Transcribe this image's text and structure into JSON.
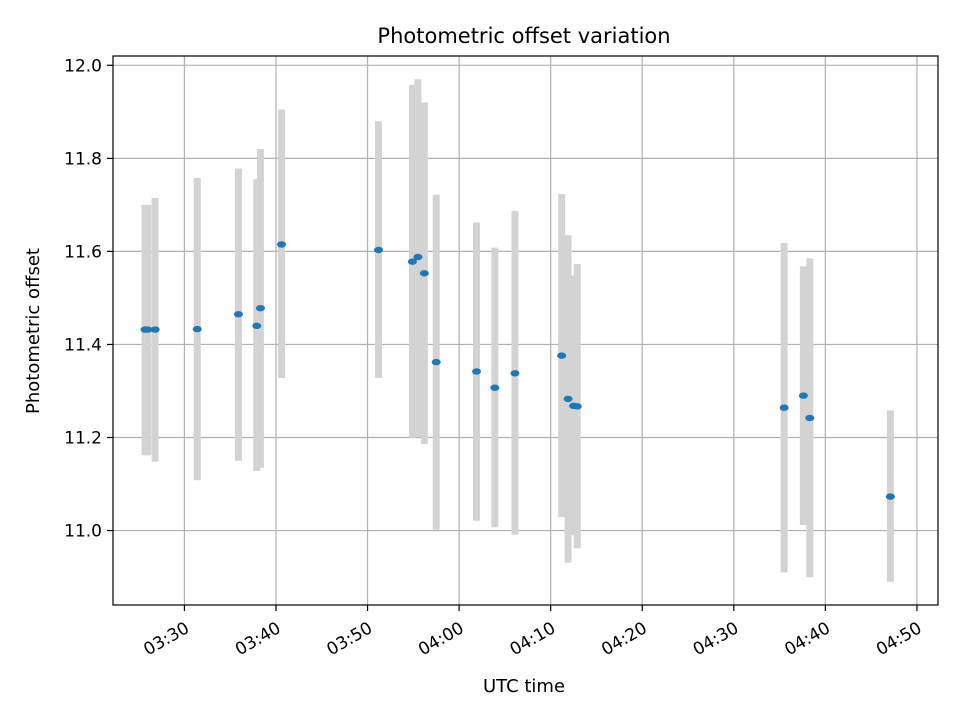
{
  "chart_data": {
    "type": "scatter",
    "title": "Photometric offset variation",
    "xlabel": "UTC time",
    "ylabel": "Photometric offset",
    "grid": true,
    "x_ticks": [
      "03:30",
      "03:40",
      "03:50",
      "04:00",
      "04:10",
      "04:20",
      "04:30",
      "04:40",
      "04:50"
    ],
    "y_ticks": [
      "11.0",
      "11.2",
      "11.4",
      "11.6",
      "11.8",
      "12.0"
    ],
    "xlim": [
      "03:22:12",
      "04:52:18"
    ],
    "ylim": [
      10.84,
      12.02
    ],
    "colors": {
      "points": "#1f77b4",
      "errorbars": "#d3d3d3",
      "grid": "#b0b0b0"
    },
    "points": [
      {
        "x": "03:25:42",
        "y": 11.432,
        "ylow": 11.162,
        "yhigh": 11.7
      },
      {
        "x": "03:26:00",
        "y": 11.432,
        "ylow": 11.162,
        "yhigh": 11.7
      },
      {
        "x": "03:26:48",
        "y": 11.432,
        "ylow": 11.148,
        "yhigh": 11.715
      },
      {
        "x": "03:31:24",
        "y": 11.433,
        "ylow": 11.108,
        "yhigh": 11.758
      },
      {
        "x": "03:35:54",
        "y": 11.465,
        "ylow": 11.15,
        "yhigh": 11.778
      },
      {
        "x": "03:37:54",
        "y": 11.44,
        "ylow": 11.128,
        "yhigh": 11.755
      },
      {
        "x": "03:38:18",
        "y": 11.478,
        "ylow": 11.135,
        "yhigh": 11.82
      },
      {
        "x": "03:40:36",
        "y": 11.615,
        "ylow": 11.328,
        "yhigh": 11.905
      },
      {
        "x": "03:51:12",
        "y": 11.603,
        "ylow": 11.328,
        "yhigh": 11.88
      },
      {
        "x": "03:54:54",
        "y": 11.578,
        "ylow": 11.2,
        "yhigh": 11.958
      },
      {
        "x": "03:55:30",
        "y": 11.588,
        "ylow": 11.202,
        "yhigh": 11.97
      },
      {
        "x": "03:56:12",
        "y": 11.553,
        "ylow": 11.186,
        "yhigh": 11.92
      },
      {
        "x": "03:57:30",
        "y": 11.362,
        "ylow": 11.002,
        "yhigh": 11.722
      },
      {
        "x": "04:01:54",
        "y": 11.342,
        "ylow": 11.021,
        "yhigh": 11.662
      },
      {
        "x": "04:03:54",
        "y": 11.307,
        "ylow": 11.007,
        "yhigh": 11.608
      },
      {
        "x": "04:06:06",
        "y": 11.338,
        "ylow": 10.991,
        "yhigh": 11.687
      },
      {
        "x": "04:11:12",
        "y": 11.376,
        "ylow": 11.029,
        "yhigh": 11.723
      },
      {
        "x": "04:11:54",
        "y": 11.283,
        "ylow": 10.931,
        "yhigh": 11.635
      },
      {
        "x": "04:12:30",
        "y": 11.268,
        "ylow": 10.99,
        "yhigh": 11.548
      },
      {
        "x": "04:12:54",
        "y": 11.267,
        "ylow": 10.962,
        "yhigh": 11.573
      },
      {
        "x": "04:35:30",
        "y": 11.264,
        "ylow": 10.91,
        "yhigh": 11.618
      },
      {
        "x": "04:37:36",
        "y": 11.29,
        "ylow": 11.012,
        "yhigh": 11.568
      },
      {
        "x": "04:38:18",
        "y": 11.242,
        "ylow": 10.9,
        "yhigh": 11.585
      },
      {
        "x": "04:47:06",
        "y": 11.073,
        "ylow": 10.89,
        "yhigh": 11.258
      }
    ]
  }
}
